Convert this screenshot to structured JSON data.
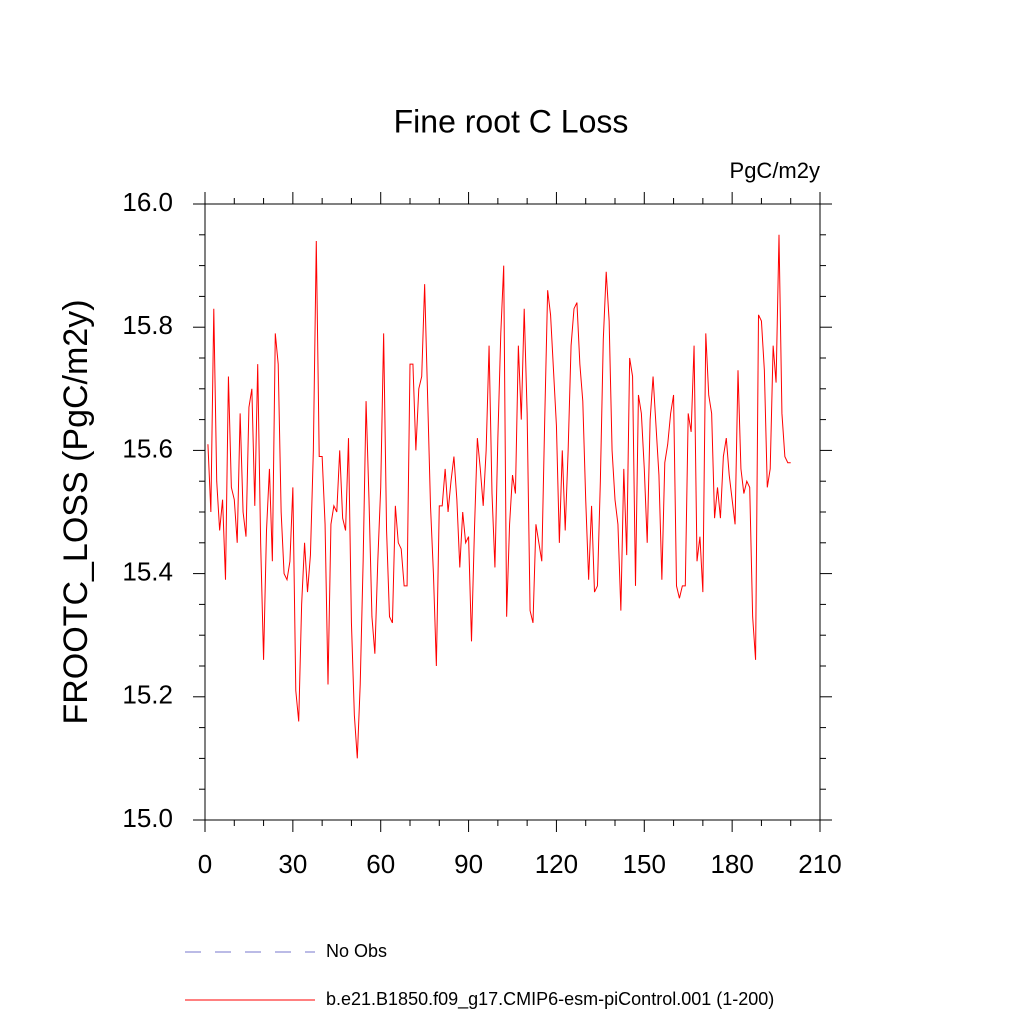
{
  "chart_data": {
    "type": "line",
    "title": "Fine root C Loss",
    "units": "PgC/m2y",
    "ylabel": "FROOTC_LOSS  (PgC/m2y)",
    "x": [
      1,
      2,
      3,
      4,
      5,
      6,
      7,
      8,
      9,
      10,
      11,
      12,
      13,
      14,
      15,
      16,
      17,
      18,
      19,
      20,
      21,
      22,
      23,
      24,
      25,
      26,
      27,
      28,
      29,
      30,
      31,
      32,
      33,
      34,
      35,
      36,
      37,
      38,
      39,
      40,
      41,
      42,
      43,
      44,
      45,
      46,
      47,
      48,
      49,
      50,
      51,
      52,
      53,
      54,
      55,
      56,
      57,
      58,
      59,
      60,
      61,
      62,
      63,
      64,
      65,
      66,
      67,
      68,
      69,
      70,
      71,
      72,
      73,
      74,
      75,
      76,
      77,
      78,
      79,
      80,
      81,
      82,
      83,
      84,
      85,
      86,
      87,
      88,
      89,
      90,
      91,
      92,
      93,
      94,
      95,
      96,
      97,
      98,
      99,
      100,
      101,
      102,
      103,
      104,
      105,
      106,
      107,
      108,
      109,
      110,
      111,
      112,
      113,
      114,
      115,
      116,
      117,
      118,
      119,
      120,
      121,
      122,
      123,
      124,
      125,
      126,
      127,
      128,
      129,
      130,
      131,
      132,
      133,
      134,
      135,
      136,
      137,
      138,
      139,
      140,
      141,
      142,
      143,
      144,
      145,
      146,
      147,
      148,
      149,
      150,
      151,
      152,
      153,
      154,
      155,
      156,
      157,
      158,
      159,
      160,
      161,
      162,
      163,
      164,
      165,
      166,
      167,
      168,
      169,
      170,
      171,
      172,
      173,
      174,
      175,
      176,
      177,
      178,
      179,
      180,
      181,
      182,
      183,
      184,
      185,
      186,
      187,
      188,
      189,
      190,
      191,
      192,
      193,
      194,
      195,
      196,
      197,
      198,
      199,
      200
    ],
    "series": [
      {
        "name": "b.e21.B1850.f09_g17.CMIP6-esm-piControl.001 (1-200)",
        "color": "#ff0000",
        "values": [
          15.61,
          15.5,
          15.83,
          15.55,
          15.47,
          15.52,
          15.39,
          15.72,
          15.54,
          15.52,
          15.45,
          15.66,
          15.5,
          15.46,
          15.67,
          15.7,
          15.51,
          15.74,
          15.45,
          15.26,
          15.47,
          15.57,
          15.42,
          15.79,
          15.74,
          15.5,
          15.4,
          15.39,
          15.42,
          15.54,
          15.21,
          15.16,
          15.35,
          15.45,
          15.37,
          15.43,
          15.6,
          15.94,
          15.59,
          15.59,
          15.48,
          15.22,
          15.48,
          15.51,
          15.5,
          15.6,
          15.49,
          15.47,
          15.62,
          15.32,
          15.17,
          15.1,
          15.22,
          15.42,
          15.68,
          15.52,
          15.33,
          15.27,
          15.42,
          15.54,
          15.79,
          15.47,
          15.33,
          15.32,
          15.51,
          15.45,
          15.44,
          15.38,
          15.38,
          15.74,
          15.74,
          15.6,
          15.7,
          15.72,
          15.87,
          15.69,
          15.51,
          15.4,
          15.25,
          15.51,
          15.51,
          15.57,
          15.5,
          15.55,
          15.59,
          15.52,
          15.41,
          15.5,
          15.45,
          15.46,
          15.29,
          15.47,
          15.62,
          15.57,
          15.51,
          15.6,
          15.77,
          15.53,
          15.41,
          15.62,
          15.79,
          15.9,
          15.33,
          15.48,
          15.56,
          15.53,
          15.77,
          15.65,
          15.83,
          15.66,
          15.34,
          15.32,
          15.48,
          15.45,
          15.42,
          15.65,
          15.86,
          15.82,
          15.73,
          15.64,
          15.45,
          15.6,
          15.47,
          15.6,
          15.77,
          15.83,
          15.84,
          15.74,
          15.68,
          15.52,
          15.39,
          15.51,
          15.37,
          15.38,
          15.55,
          15.78,
          15.89,
          15.81,
          15.6,
          15.52,
          15.48,
          15.34,
          15.57,
          15.43,
          15.75,
          15.72,
          15.38,
          15.69,
          15.66,
          15.57,
          15.45,
          15.65,
          15.72,
          15.64,
          15.56,
          15.39,
          15.58,
          15.61,
          15.66,
          15.69,
          15.38,
          15.36,
          15.38,
          15.38,
          15.66,
          15.63,
          15.77,
          15.42,
          15.46,
          15.37,
          15.79,
          15.69,
          15.66,
          15.49,
          15.54,
          15.49,
          15.59,
          15.62,
          15.56,
          15.52,
          15.48,
          15.73,
          15.57,
          15.53,
          15.55,
          15.54,
          15.33,
          15.26,
          15.82,
          15.81,
          15.73,
          15.54,
          15.57,
          15.77,
          15.71,
          15.95,
          15.66,
          15.59,
          15.58,
          15.58
        ]
      }
    ],
    "reference": {
      "name": "No Obs",
      "color": "#7777cc",
      "style": "dashed"
    },
    "xlim": [
      0,
      210
    ],
    "xticks": [
      0,
      30,
      60,
      90,
      120,
      150,
      180,
      210
    ],
    "xminorticks": [
      10,
      20,
      40,
      50,
      70,
      80,
      100,
      110,
      130,
      140,
      160,
      170,
      190,
      200
    ],
    "ylim": [
      15,
      16
    ],
    "yticks": [
      {
        "value": 15,
        "label": "15.0"
      },
      {
        "value": 15.2,
        "label": "15.2"
      },
      {
        "value": 15.4,
        "label": "15.4"
      },
      {
        "value": 15.6,
        "label": "15.6"
      },
      {
        "value": 15.8,
        "label": "15.8"
      },
      {
        "value": 16,
        "label": "16.0"
      }
    ],
    "yminorticks": [
      15.05,
      15.1,
      15.15,
      15.25,
      15.3,
      15.35,
      15.45,
      15.5,
      15.55,
      15.65,
      15.7,
      15.75,
      15.85,
      15.9,
      15.95
    ]
  }
}
